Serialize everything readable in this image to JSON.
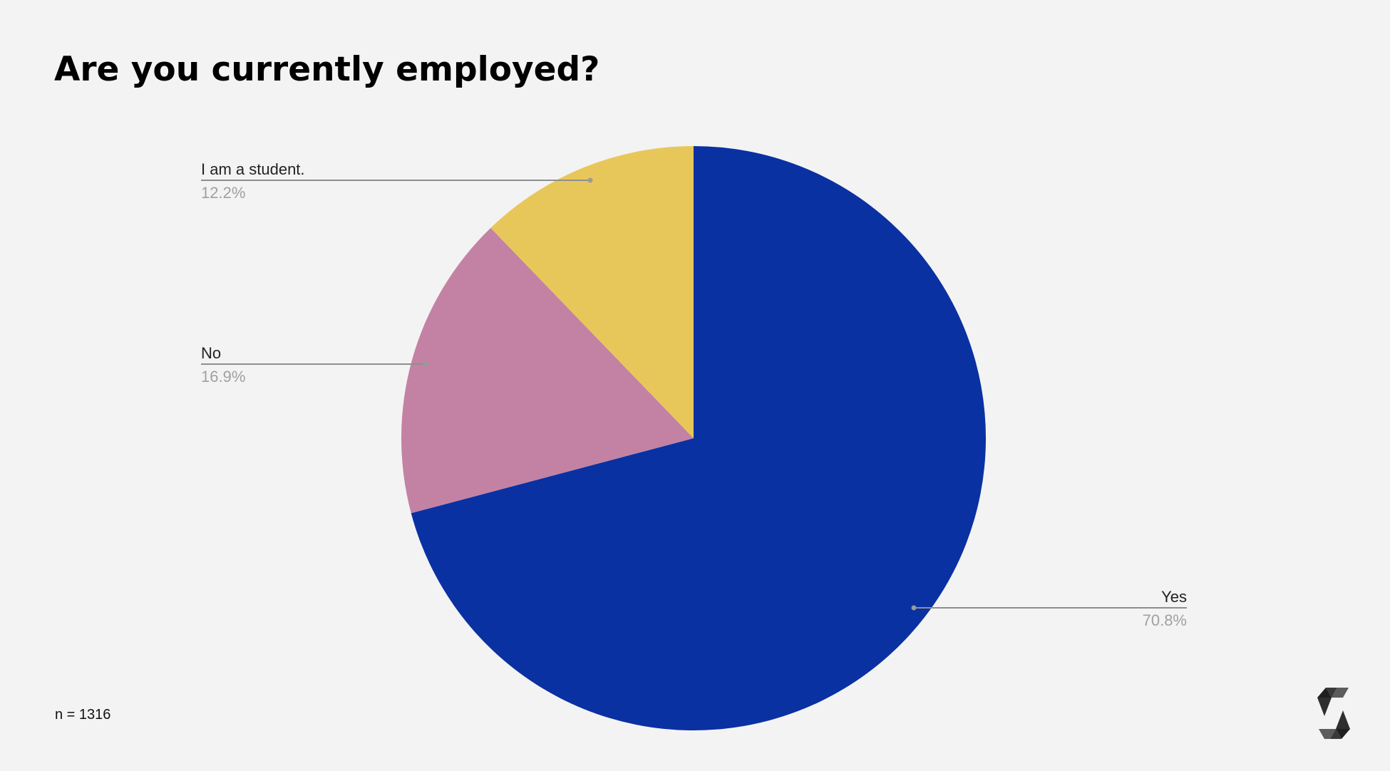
{
  "title": "Are you currently employed?",
  "sample_size_label": "n = 1316",
  "logo": "solidity-logo-icon",
  "colors": {
    "background": "#f3f3f3",
    "yes": "#0a31a2",
    "no": "#c382a3",
    "student": "#e8c75a",
    "leader_line": "#8e8e8e",
    "percent_text": "#a0a0a0"
  },
  "chart_data": {
    "type": "pie",
    "title": "Are you currently employed?",
    "categories": [
      "Yes",
      "No",
      "I am a student."
    ],
    "values": [
      70.8,
      16.9,
      12.2
    ],
    "unit": "%",
    "start_angle": "12 o'clock, clockwise",
    "n": 1316,
    "labels": [
      {
        "name": "Yes",
        "percent": "70.8%"
      },
      {
        "name": "No",
        "percent": "16.9%"
      },
      {
        "name": "I am a student.",
        "percent": "12.2%"
      }
    ],
    "legend": "none (callout labels with leader lines)"
  }
}
